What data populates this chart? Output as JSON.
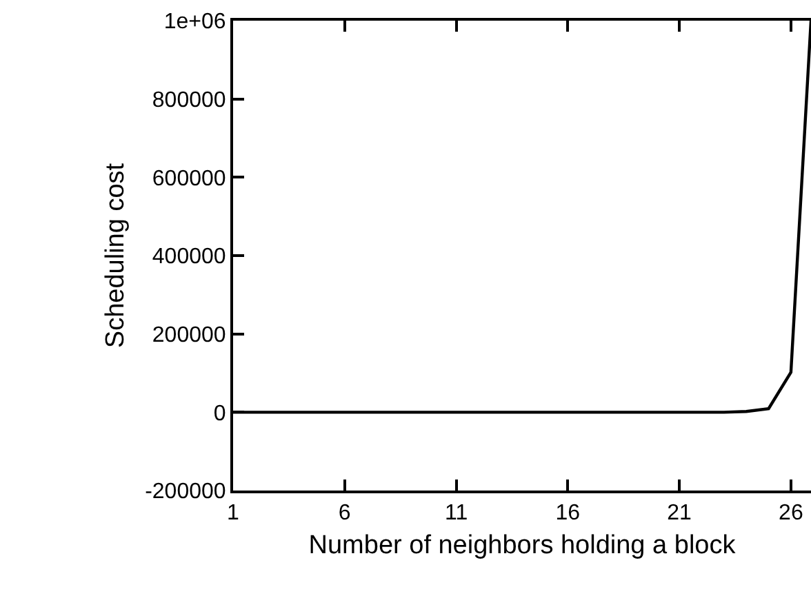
{
  "chart_data": {
    "type": "line",
    "xlabel": "Number of neighbors holding a block",
    "ylabel": "Scheduling cost",
    "x": [
      1,
      2,
      3,
      4,
      5,
      6,
      7,
      8,
      9,
      10,
      11,
      12,
      13,
      14,
      15,
      16,
      17,
      18,
      19,
      20,
      21,
      22,
      23,
      24,
      25,
      26,
      26.9
    ],
    "series": [
      {
        "color": "#000000",
        "values": [
          0,
          0,
          0,
          0,
          0,
          0,
          0,
          0,
          0,
          0,
          0,
          0,
          0,
          0,
          0,
          0,
          0,
          0,
          0,
          0,
          0,
          0,
          0,
          2000,
          9000,
          102000,
          1000000
        ]
      }
    ],
    "xlim": [
      1,
      26.9
    ],
    "xticks": [
      1,
      6,
      11,
      16,
      21,
      26
    ],
    "ylim": [
      -200000,
      1000000
    ],
    "yticks": [
      -200000,
      0,
      200000,
      400000,
      600000,
      800000,
      {
        "value": 1000000,
        "label": "1e+06"
      }
    ],
    "marker": "none",
    "line_style": "solid"
  }
}
